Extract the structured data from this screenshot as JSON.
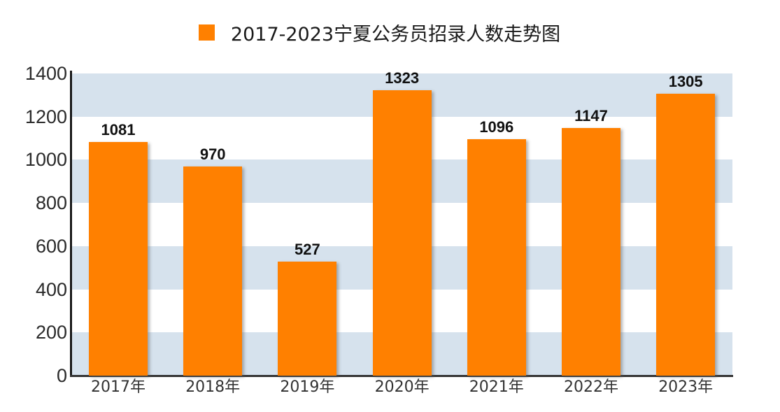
{
  "legend": {
    "label": "2017-2023宁夏公务员招录人数走势图",
    "color": "#ff8000"
  },
  "axis": {
    "y_ticks": [
      "0",
      "200",
      "400",
      "600",
      "800",
      "1000",
      "1200",
      "1400"
    ],
    "x_ticks": [
      "2017年",
      "2018年",
      "2019年",
      "2020年",
      "2021年",
      "2022年",
      "2023年"
    ]
  },
  "bars": [
    {
      "year": "2017年",
      "value": 1081,
      "label": "1081"
    },
    {
      "year": "2018年",
      "value": 970,
      "label": "970"
    },
    {
      "year": "2019年",
      "value": 527,
      "label": "527"
    },
    {
      "year": "2020年",
      "value": 1323,
      "label": "1323"
    },
    {
      "year": "2021年",
      "value": 1096,
      "label": "1096"
    },
    {
      "year": "2022年",
      "value": 1147,
      "label": "1147"
    },
    {
      "year": "2023年",
      "value": 1305,
      "label": "1305"
    }
  ],
  "colors": {
    "bar": "#ff8000",
    "band": "#d6e2ed",
    "background": "#ffffff"
  },
  "chart_data": {
    "type": "bar",
    "title": "2017-2023宁夏公务员招录人数走势图",
    "categories": [
      "2017年",
      "2018年",
      "2019年",
      "2020年",
      "2021年",
      "2022年",
      "2023年"
    ],
    "series": [
      {
        "name": "2017-2023宁夏公务员招录人数走势图",
        "values": [
          1081,
          970,
          527,
          1323,
          1096,
          1147,
          1305
        ]
      }
    ],
    "values": [
      1081,
      970,
      527,
      1323,
      1096,
      1147,
      1305
    ],
    "xlabel": "",
    "ylabel": "",
    "ylim": [
      0,
      1400
    ],
    "y_ticks": [
      0,
      200,
      400,
      600,
      800,
      1000,
      1200,
      1400
    ],
    "grid": "alternating horizontal bands",
    "legend_position": "top-center",
    "data_labels": true
  }
}
